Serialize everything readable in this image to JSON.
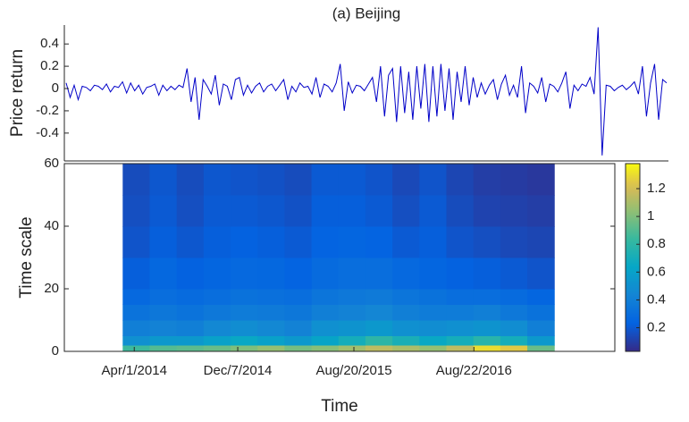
{
  "chart_data": [
    {
      "type": "line",
      "title": "(a)  Beijing",
      "ylabel": "Price return",
      "color": "#0000c8",
      "values": [
        0.05,
        -0.08,
        0.03,
        -0.1,
        0.02,
        0.01,
        -0.02,
        0.03,
        0.02,
        -0.01,
        0.04,
        -0.03,
        0.02,
        0.01,
        0.06,
        -0.04,
        0.05,
        -0.02,
        0.03,
        -0.05,
        0.01,
        0.02,
        0.04,
        -0.06,
        0.03,
        -0.02,
        0.02,
        -0.01,
        0.03,
        0.01,
        0.18,
        -0.12,
        0.1,
        -0.28,
        0.08,
        0.02,
        -0.05,
        0.12,
        -0.15,
        0.04,
        0.02,
        -0.1,
        0.08,
        0.1,
        -0.06,
        0.03,
        -0.04,
        0.02,
        0.05,
        -0.03,
        0.02,
        0.04,
        -0.02,
        0.03,
        0.08,
        -0.1,
        0.02,
        -0.03,
        0.05,
        0.01,
        0.02,
        -0.05,
        0.1,
        -0.08,
        0.04,
        0.02,
        -0.03,
        0.05,
        0.22,
        -0.2,
        0.06,
        -0.04,
        0.03,
        0.02,
        -0.02,
        0.04,
        0.1,
        -0.12,
        0.2,
        -0.25,
        0.12,
        0.18,
        -0.3,
        0.2,
        -0.22,
        0.15,
        -0.28,
        0.2,
        -0.18,
        0.22,
        -0.3,
        0.2,
        -0.25,
        0.22,
        -0.2,
        0.18,
        -0.28,
        0.15,
        -0.12,
        0.2,
        -0.15,
        0.1,
        -0.08,
        0.05,
        -0.05,
        0.03,
        0.08,
        -0.1,
        0.04,
        0.12,
        -0.06,
        0.03,
        -0.08,
        0.2,
        -0.22,
        0.05,
        0.02,
        -0.04,
        0.1,
        -0.12,
        0.04,
        0.02,
        -0.03,
        0.05,
        0.15,
        -0.18,
        0.03,
        -0.02,
        0.04,
        0.02,
        0.1,
        -0.05,
        0.55,
        -0.6,
        0.03,
        0.02,
        -0.02,
        0.01,
        0.03,
        -0.01,
        0.02,
        0.06,
        -0.05,
        0.2,
        -0.25,
        0.05,
        0.22,
        -0.28,
        0.08,
        0.05
      ],
      "ylim": [
        -0.65,
        0.57
      ],
      "yticks": [
        -0.4,
        -0.2,
        0,
        0.2,
        0.4
      ]
    },
    {
      "type": "heatmap",
      "xlabel": "Time",
      "ylabel": "Time scale",
      "colormap": "parula",
      "xlim": [
        0,
        1000
      ],
      "xticks": [
        {
          "value": 127,
          "label": "Apr/1/2014"
        },
        {
          "value": 315,
          "label": "Dec/7/2014"
        },
        {
          "value": 526,
          "label": "Aug/20/2015"
        },
        {
          "value": 744,
          "label": "Aug/22/2016"
        }
      ],
      "ylim": [
        0,
        60
      ],
      "yticks": [
        0,
        20,
        40,
        60
      ],
      "x_edges": [
        106,
        155,
        204,
        253,
        302,
        351,
        400,
        449,
        498,
        547,
        596,
        645,
        694,
        743,
        792,
        841,
        890
      ],
      "y_edges": [
        0,
        2,
        5,
        10,
        15,
        20,
        30,
        40,
        50,
        60
      ],
      "z": [
        [
          0.85,
          0.9,
          0.92,
          0.95,
          1.0,
          1.05,
          0.98,
          1.02,
          1.08,
          1.15,
          1.1,
          1.05,
          1.15,
          1.3,
          1.25,
          0.95
        ],
        [
          0.5,
          0.55,
          0.55,
          0.6,
          0.65,
          0.6,
          0.55,
          0.62,
          0.7,
          0.8,
          0.72,
          0.65,
          0.7,
          0.78,
          0.7,
          0.55
        ],
        [
          0.4,
          0.42,
          0.4,
          0.45,
          0.48,
          0.45,
          0.42,
          0.5,
          0.52,
          0.55,
          0.5,
          0.48,
          0.5,
          0.52,
          0.48,
          0.4
        ],
        [
          0.33,
          0.35,
          0.33,
          0.36,
          0.38,
          0.37,
          0.35,
          0.4,
          0.42,
          0.44,
          0.4,
          0.38,
          0.38,
          0.4,
          0.36,
          0.32
        ],
        [
          0.27,
          0.3,
          0.28,
          0.3,
          0.32,
          0.31,
          0.3,
          0.34,
          0.36,
          0.37,
          0.34,
          0.32,
          0.3,
          0.3,
          0.28,
          0.25
        ],
        [
          0.22,
          0.26,
          0.23,
          0.25,
          0.27,
          0.26,
          0.24,
          0.28,
          0.3,
          0.3,
          0.27,
          0.25,
          0.23,
          0.22,
          0.2,
          0.18
        ],
        [
          0.18,
          0.22,
          0.19,
          0.22,
          0.23,
          0.22,
          0.2,
          0.24,
          0.25,
          0.24,
          0.2,
          0.22,
          0.18,
          0.16,
          0.14,
          0.13
        ],
        [
          0.16,
          0.2,
          0.16,
          0.2,
          0.2,
          0.19,
          0.17,
          0.22,
          0.22,
          0.2,
          0.16,
          0.2,
          0.15,
          0.12,
          0.11,
          0.1
        ],
        [
          0.15,
          0.19,
          0.15,
          0.19,
          0.18,
          0.17,
          0.15,
          0.2,
          0.2,
          0.18,
          0.14,
          0.18,
          0.13,
          0.1,
          0.09,
          0.08
        ]
      ],
      "clim": [
        0.03,
        1.38
      ],
      "cticks": [
        0.2,
        0.4,
        0.6,
        0.8,
        1,
        1.2
      ]
    }
  ]
}
